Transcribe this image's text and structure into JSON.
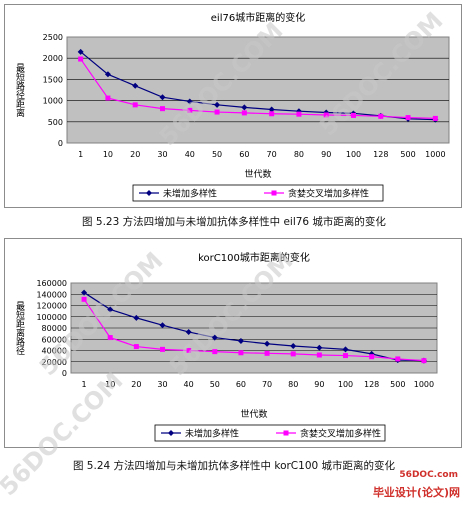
{
  "chart_data": [
    {
      "type": "line",
      "title": "eil76城市距离的变化",
      "ylabel": "最短路径距离",
      "xlabel": "世代数",
      "categories": [
        "1",
        "10",
        "20",
        "30",
        "40",
        "50",
        "60",
        "70",
        "80",
        "90",
        "100",
        "128",
        "500",
        "1000"
      ],
      "yticks": [
        "0",
        "500",
        "1000",
        "1500",
        "2000",
        "2500"
      ],
      "ylim": [
        0,
        2500
      ],
      "grid": true,
      "legend_position": "bottom",
      "series": [
        {
          "name": "未增加多样性",
          "color": "#000080",
          "marker": "diamond",
          "values": [
            2150,
            1620,
            1350,
            1080,
            980,
            900,
            840,
            790,
            750,
            720,
            700,
            640,
            570,
            550
          ]
        },
        {
          "name": "贪婪交叉增加多样性",
          "color": "#ff00ff",
          "marker": "square",
          "values": [
            1980,
            1060,
            900,
            810,
            770,
            730,
            710,
            690,
            680,
            660,
            650,
            630,
            600,
            580
          ]
        }
      ],
      "caption": "图 5.23  方法四增加与未增加抗体多样性中 eil76 城市距离的变化"
    },
    {
      "type": "line",
      "title": "korC100城市距离的变化",
      "ylabel": "最短距离路径",
      "xlabel": "世代数",
      "categories": [
        "1",
        "10",
        "20",
        "30",
        "40",
        "50",
        "60",
        "70",
        "80",
        "90",
        "100",
        "128",
        "500",
        "1000"
      ],
      "yticks": [
        "0",
        "20000",
        "40000",
        "60000",
        "80000",
        "100000",
        "120000",
        "140000",
        "160000"
      ],
      "ylim": [
        0,
        160000
      ],
      "grid": true,
      "legend_position": "bottom",
      "series": [
        {
          "name": "未增加多样性",
          "color": "#000080",
          "marker": "diamond",
          "values": [
            143000,
            113000,
            98000,
            85000,
            73000,
            63000,
            57000,
            52000,
            48000,
            45000,
            42000,
            34000,
            23000,
            22000
          ]
        },
        {
          "name": "贪婪交叉增加多样性",
          "color": "#ff00ff",
          "marker": "square",
          "values": [
            131000,
            63000,
            47000,
            42000,
            40000,
            38000,
            36000,
            35000,
            34000,
            32000,
            31000,
            29000,
            25000,
            22000
          ]
        }
      ],
      "caption": "图 5.24  方法四增加与未增加抗体多样性中 korC100 城市距离的变化"
    }
  ],
  "watermark": {
    "text": "56DOC.COM",
    "site": "毕业设计(论文)网",
    "url": "56DOC.com"
  }
}
